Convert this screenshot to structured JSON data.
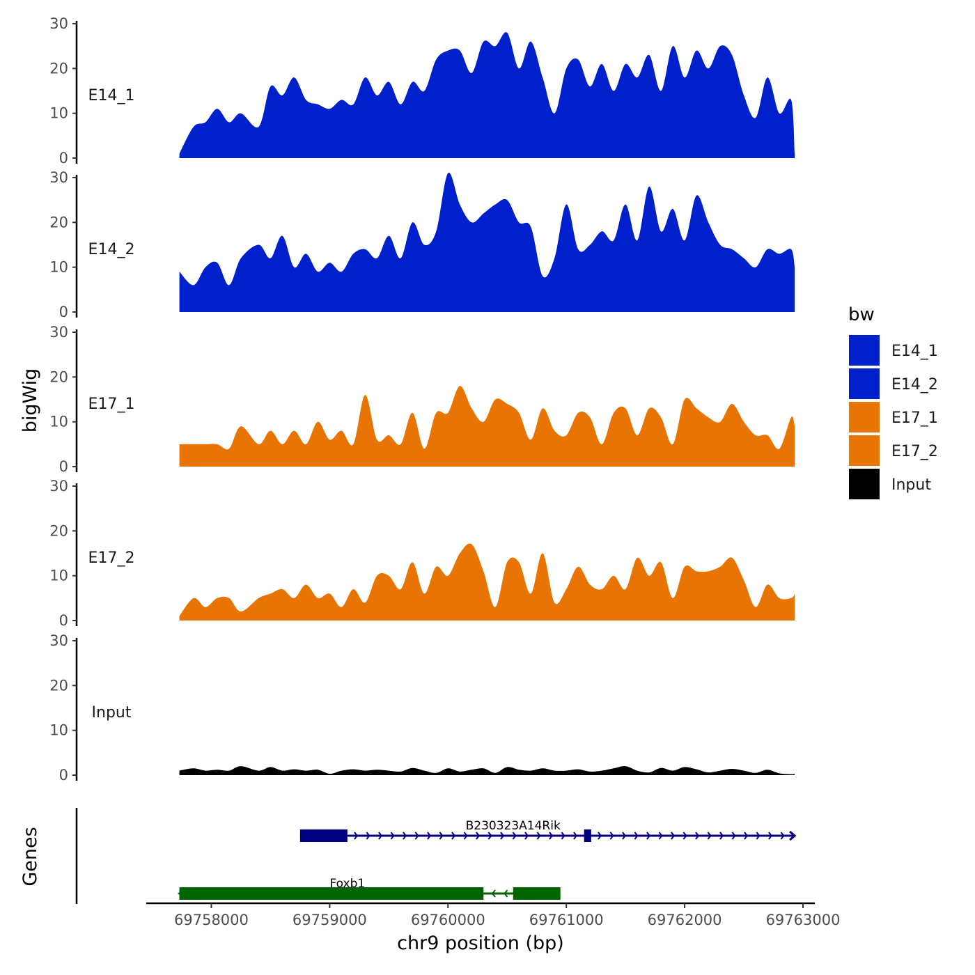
{
  "chart_data": {
    "type": "area",
    "ylabel": "bigWig",
    "xlabel": "chr9 position (bp)",
    "genes_label": "Genes",
    "xlim": [
      69757450,
      69763100
    ],
    "ylim": [
      0,
      30
    ],
    "y_ticks": [
      {
        "value": 0,
        "label": "0"
      },
      {
        "value": 10,
        "label": "10"
      },
      {
        "value": 20,
        "label": "20"
      },
      {
        "value": 30,
        "label": "30"
      }
    ],
    "x_ticks": [
      {
        "value": 69758000,
        "label": "69758000"
      },
      {
        "value": 69759000,
        "label": "69759000"
      },
      {
        "value": 69760000,
        "label": "69760000"
      },
      {
        "value": 69761000,
        "label": "69761000"
      },
      {
        "value": 69762000,
        "label": "69762000"
      },
      {
        "value": 69763000,
        "label": "69763000"
      }
    ],
    "legend": {
      "title": "bw",
      "placement": "right",
      "entries": [
        {
          "name": "E14_1",
          "color": "#0020CC"
        },
        {
          "name": "E14_2",
          "color": "#0020CC"
        },
        {
          "name": "E17_1",
          "color": "#E87404"
        },
        {
          "name": "E17_2",
          "color": "#E87404"
        },
        {
          "name": "Input",
          "color": "#000000"
        }
      ]
    },
    "series": [
      {
        "name": "E14_1",
        "color": "#0020CC",
        "x": [
          69757730,
          69757850,
          69757950,
          69758050,
          69758150,
          69758250,
          69758400,
          69758500,
          69758600,
          69758700,
          69758800,
          69758900,
          69759000,
          69759100,
          69759200,
          69759300,
          69759400,
          69759500,
          69759600,
          69759700,
          69759800,
          69759900,
          69760000,
          69760100,
          69760200,
          69760300,
          69760400,
          69760500,
          69760600,
          69760700,
          69760800,
          69760900,
          69761000,
          69761100,
          69761200,
          69761300,
          69761400,
          69761500,
          69761600,
          69761700,
          69761800,
          69761900,
          69762000,
          69762100,
          69762200,
          69762300,
          69762400,
          69762500,
          69762600,
          69762700,
          69762800,
          69762900,
          69762930
        ],
        "values": [
          1,
          7,
          8,
          11,
          8,
          10,
          7,
          16,
          14,
          18,
          13,
          12,
          11,
          13,
          12,
          18,
          14,
          17,
          12,
          17,
          15,
          22,
          24,
          24,
          19,
          26,
          25,
          28,
          20,
          26,
          18,
          10,
          20,
          22,
          16,
          21,
          15,
          21,
          18,
          23,
          15,
          25,
          18,
          24,
          20,
          25,
          23,
          14,
          9,
          18,
          10,
          13,
          1
        ]
      },
      {
        "name": "E14_2",
        "color": "#0020CC",
        "x": [
          69757730,
          69757850,
          69757950,
          69758050,
          69758150,
          69758250,
          69758400,
          69758500,
          69758600,
          69758700,
          69758800,
          69758900,
          69759000,
          69759100,
          69759200,
          69759300,
          69759400,
          69759500,
          69759600,
          69759700,
          69759800,
          69759900,
          69760000,
          69760100,
          69760200,
          69760300,
          69760400,
          69760500,
          69760600,
          69760700,
          69760800,
          69760900,
          69761000,
          69761100,
          69761200,
          69761300,
          69761400,
          69761500,
          69761600,
          69761700,
          69761800,
          69761900,
          69762000,
          69762100,
          69762200,
          69762300,
          69762400,
          69762500,
          69762600,
          69762700,
          69762800,
          69762900,
          69762930
        ],
        "values": [
          9,
          6,
          10,
          11,
          6,
          12,
          15,
          12,
          17,
          10,
          13,
          9,
          11,
          9,
          13,
          14,
          12,
          17,
          12,
          20,
          15,
          18,
          31,
          24,
          20,
          22,
          24,
          25,
          20,
          19,
          8,
          12,
          24,
          14,
          15,
          18,
          16,
          24,
          16,
          28,
          18,
          23,
          16,
          26,
          20,
          15,
          14,
          12,
          10,
          14,
          13,
          14,
          10
        ]
      },
      {
        "name": "E17_1",
        "color": "#E87404",
        "x": [
          69757730,
          69757850,
          69757950,
          69758050,
          69758150,
          69758250,
          69758400,
          69758500,
          69758600,
          69758700,
          69758800,
          69758900,
          69759000,
          69759100,
          69759200,
          69759300,
          69759400,
          69759500,
          69759600,
          69759700,
          69759800,
          69759900,
          69760000,
          69760100,
          69760200,
          69760300,
          69760400,
          69760500,
          69760600,
          69760700,
          69760800,
          69760900,
          69761000,
          69761100,
          69761200,
          69761300,
          69761400,
          69761500,
          69761600,
          69761700,
          69761800,
          69761900,
          69762000,
          69762100,
          69762200,
          69762300,
          69762400,
          69762500,
          69762600,
          69762700,
          69762800,
          69762900,
          69762930
        ],
        "values": [
          5,
          5,
          5,
          5,
          4,
          9,
          5,
          8,
          5,
          8,
          5,
          10,
          6,
          8,
          5,
          16,
          6,
          7,
          5,
          12,
          4,
          12,
          12,
          18,
          13,
          10,
          15,
          14,
          12,
          6,
          13,
          8,
          7,
          12,
          11,
          5,
          12,
          13,
          7,
          13,
          11,
          5,
          15,
          13,
          11,
          10,
          14,
          10,
          7,
          7,
          4,
          11,
          9
        ]
      },
      {
        "name": "E17_2",
        "color": "#E87404",
        "x": [
          69757730,
          69757850,
          69757950,
          69758050,
          69758150,
          69758250,
          69758400,
          69758500,
          69758600,
          69758700,
          69758800,
          69758900,
          69759000,
          69759100,
          69759200,
          69759300,
          69759400,
          69759500,
          69759600,
          69759700,
          69759800,
          69759900,
          69760000,
          69760100,
          69760200,
          69760300,
          69760400,
          69760500,
          69760600,
          69760700,
          69760800,
          69760900,
          69761000,
          69761100,
          69761200,
          69761300,
          69761400,
          69761500,
          69761600,
          69761700,
          69761800,
          69761900,
          69762000,
          69762100,
          69762200,
          69762300,
          69762400,
          69762500,
          69762600,
          69762700,
          69762800,
          69762900,
          69762930
        ],
        "values": [
          1,
          5,
          3,
          5,
          5,
          2,
          5,
          6,
          7,
          5,
          8,
          5,
          6,
          3,
          7,
          4,
          10,
          10,
          7,
          13,
          6,
          12,
          10,
          15,
          17,
          11,
          3,
          13,
          13,
          6,
          15,
          4,
          7,
          12,
          8,
          7,
          10,
          7,
          14,
          10,
          13,
          5,
          12,
          11,
          11,
          12,
          14,
          9,
          3,
          8,
          5,
          5,
          6
        ]
      },
      {
        "name": "Input",
        "color": "#000000",
        "x": [
          69757730,
          69757850,
          69757950,
          69758050,
          69758150,
          69758250,
          69758400,
          69758500,
          69758600,
          69758700,
          69758800,
          69758900,
          69759000,
          69759100,
          69759200,
          69759300,
          69759400,
          69759500,
          69759600,
          69759700,
          69759800,
          69759900,
          69760000,
          69760100,
          69760200,
          69760300,
          69760400,
          69760500,
          69760600,
          69760700,
          69760800,
          69760900,
          69761000,
          69761100,
          69761200,
          69761300,
          69761400,
          69761500,
          69761600,
          69761700,
          69761800,
          69761900,
          69762000,
          69762100,
          69762200,
          69762300,
          69762400,
          69762500,
          69762600,
          69762700,
          69762800,
          69762900,
          69762930
        ],
        "values": [
          1,
          1.5,
          1,
          1.2,
          1,
          2,
          1,
          1.8,
          1,
          1.3,
          1,
          1.2,
          0.3,
          1,
          1.3,
          1,
          1.2,
          1,
          0.8,
          1.6,
          1,
          0.5,
          1.5,
          0.8,
          1.2,
          1.5,
          0.5,
          1.8,
          1.2,
          1,
          1.5,
          1,
          1,
          1.3,
          0.8,
          1,
          1.5,
          2,
          1,
          0.6,
          1.6,
          1,
          1.8,
          1.3,
          0.6,
          1,
          1.4,
          1,
          0.5,
          1.2,
          0.4,
          0.2,
          0.3
        ]
      }
    ],
    "genes": [
      {
        "name": "B230323A14Rik",
        "strand": "+",
        "color": "#000080",
        "start": 69758750,
        "end": 69762930,
        "exons": [
          [
            69758750,
            69759150
          ],
          [
            69761150,
            69761210
          ]
        ]
      },
      {
        "name": "Foxb1",
        "strand": "-",
        "color": "#006400",
        "start": 69757730,
        "end": 69760950,
        "exons": [
          [
            69757730,
            69760300
          ],
          [
            69760550,
            69760950
          ]
        ]
      }
    ]
  }
}
